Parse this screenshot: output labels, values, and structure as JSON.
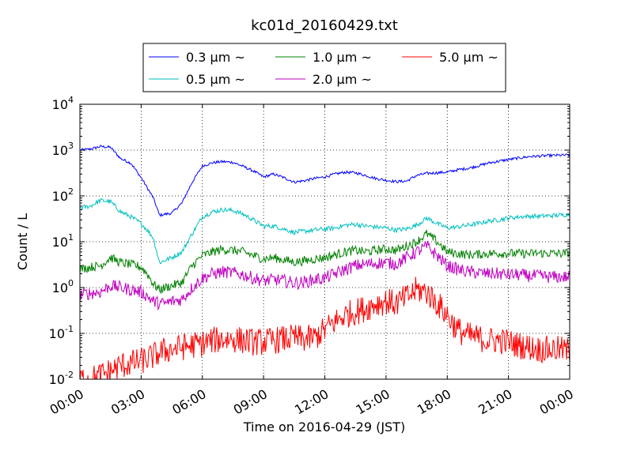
{
  "chart_data": {
    "type": "line",
    "title": "kc01d_20160429.txt",
    "xlabel": "Time on 2016-04-29 (JST)",
    "ylabel": "Count / L",
    "yscale": "log",
    "ylim": [
      0.01,
      10000
    ],
    "xlim": [
      0,
      24
    ],
    "grid": true,
    "legend_position": "top",
    "x_tick_labels": [
      "00:00",
      "03:00",
      "06:00",
      "09:00",
      "12:00",
      "15:00",
      "18:00",
      "21:00",
      "00:00"
    ],
    "x_tick_hours": [
      0,
      3,
      6,
      9,
      12,
      15,
      18,
      21,
      24
    ],
    "y_ticks": [
      {
        "value": 0.01,
        "base": "10",
        "exp": "-2"
      },
      {
        "value": 0.1,
        "base": "10",
        "exp": "-1"
      },
      {
        "value": 1,
        "base": "10",
        "exp": "0"
      },
      {
        "value": 10,
        "base": "10",
        "exp": "1"
      },
      {
        "value": 100,
        "base": "10",
        "exp": "2"
      },
      {
        "value": 1000,
        "base": "10",
        "exp": "3"
      },
      {
        "value": 10000,
        "base": "10",
        "exp": "4"
      }
    ],
    "legend_suffix": "~",
    "series": [
      {
        "name": "0.3 μm",
        "size": "0.3",
        "color": "#0000ff",
        "x": [
          0,
          0.5,
          1.0,
          1.5,
          2.0,
          2.5,
          3.0,
          3.3,
          3.6,
          3.9,
          4.2,
          4.5,
          5.0,
          5.5,
          6.0,
          6.5,
          7.0,
          7.5,
          8.0,
          8.5,
          9.0,
          9.5,
          10.0,
          10.5,
          11.0,
          11.5,
          12.0,
          12.5,
          13.0,
          13.5,
          14.0,
          14.5,
          15.0,
          15.5,
          16.0,
          16.5,
          17.0,
          17.5,
          18.0,
          18.5,
          19.0,
          19.5,
          20.0,
          20.5,
          21.0,
          21.5,
          22.0,
          22.5,
          23.0,
          23.5,
          24.0
        ],
        "values": [
          1000,
          1050,
          1200,
          1150,
          650,
          520,
          250,
          150,
          90,
          38,
          40,
          42,
          70,
          200,
          450,
          530,
          560,
          540,
          440,
          350,
          260,
          300,
          250,
          200,
          215,
          240,
          260,
          300,
          330,
          320,
          280,
          240,
          220,
          205,
          210,
          280,
          310,
          320,
          330,
          370,
          400,
          450,
          520,
          570,
          620,
          670,
          720,
          740,
          760,
          770,
          780
        ],
        "jitter": 0.03
      },
      {
        "name": "0.5 μm",
        "size": "0.5",
        "color": "#00bfbf",
        "x": [
          0,
          0.5,
          1.0,
          1.5,
          2.0,
          2.5,
          3.0,
          3.3,
          3.6,
          3.9,
          4.2,
          4.5,
          5.0,
          5.5,
          6.0,
          6.5,
          7.0,
          7.5,
          8.0,
          8.5,
          9.0,
          9.5,
          10.0,
          10.5,
          11.0,
          11.5,
          12.0,
          12.5,
          13.0,
          13.5,
          14.0,
          14.5,
          15.0,
          15.5,
          16.0,
          16.5,
          17.0,
          17.5,
          18.0,
          18.5,
          19.0,
          19.5,
          20.0,
          20.5,
          21.0,
          21.5,
          22.0,
          22.5,
          23.0,
          23.5,
          24.0
        ],
        "values": [
          55,
          60,
          80,
          75,
          45,
          35,
          25,
          18,
          12,
          3.5,
          4,
          4.5,
          6,
          15,
          35,
          45,
          50,
          48,
          40,
          30,
          22,
          22,
          19,
          16,
          17,
          18,
          19,
          20,
          23,
          24,
          22,
          21,
          20,
          18,
          19,
          23,
          33,
          25,
          20,
          21,
          23,
          25,
          28,
          30,
          33,
          35,
          36,
          36,
          37,
          38,
          40
        ],
        "jitter": 0.05
      },
      {
        "name": "1.0 μm",
        "size": "1.0",
        "color": "#008000",
        "x": [
          0,
          0.5,
          1.0,
          1.5,
          2.0,
          2.5,
          3.0,
          3.3,
          3.6,
          3.9,
          4.2,
          4.5,
          5.0,
          5.5,
          6.0,
          6.5,
          7.0,
          7.5,
          8.0,
          8.5,
          9.0,
          9.5,
          10.0,
          10.5,
          11.0,
          11.5,
          12.0,
          12.5,
          13.0,
          13.5,
          14.0,
          14.5,
          15.0,
          15.5,
          16.0,
          16.5,
          17.0,
          17.5,
          18.0,
          18.5,
          19.0,
          19.5,
          20.0,
          20.5,
          21.0,
          21.5,
          22.0,
          22.5,
          23.0,
          23.5,
          24.0
        ],
        "values": [
          2.5,
          2.8,
          3.0,
          4.5,
          3.5,
          3.2,
          2.8,
          2.0,
          1.2,
          0.9,
          1.0,
          1.1,
          1.3,
          3.0,
          5.0,
          6.0,
          6.8,
          6.5,
          6.0,
          5.0,
          4.2,
          4.5,
          4.0,
          3.6,
          3.8,
          4.2,
          4.5,
          5.2,
          6.0,
          6.5,
          6.0,
          6.5,
          7.0,
          6.5,
          8.0,
          10,
          15,
          10,
          6.0,
          5.5,
          5.2,
          5.3,
          5.5,
          5.6,
          5.6,
          5.5,
          5.5,
          5.6,
          5.6,
          5.5,
          5.7
        ],
        "jitter": 0.1
      },
      {
        "name": "2.0 μm",
        "size": "2.0",
        "color": "#bf00bf",
        "x": [
          0,
          0.5,
          1.0,
          1.5,
          2.0,
          2.5,
          3.0,
          3.3,
          3.6,
          3.9,
          4.2,
          4.5,
          5.0,
          5.5,
          6.0,
          6.5,
          7.0,
          7.5,
          8.0,
          8.5,
          9.0,
          9.5,
          10.0,
          10.5,
          11.0,
          11.5,
          12.0,
          12.5,
          13.0,
          13.5,
          14.0,
          14.5,
          15.0,
          15.5,
          16.0,
          16.5,
          17.0,
          17.5,
          18.0,
          18.5,
          19.0,
          19.5,
          20.0,
          20.5,
          21.0,
          21.5,
          22.0,
          22.5,
          23.0,
          23.5,
          24.0
        ],
        "values": [
          0.7,
          0.75,
          0.8,
          1.1,
          1.0,
          0.9,
          0.8,
          0.65,
          0.5,
          0.45,
          0.45,
          0.5,
          0.55,
          1.0,
          1.6,
          2.0,
          2.2,
          2.1,
          1.9,
          1.6,
          1.4,
          1.5,
          1.4,
          1.25,
          1.3,
          1.5,
          1.6,
          2.0,
          2.5,
          3.0,
          3.2,
          3.4,
          3.5,
          3.3,
          4.5,
          6.0,
          8.0,
          5.0,
          3.0,
          2.5,
          2.2,
          2.1,
          2.0,
          2.0,
          1.9,
          1.9,
          1.8,
          1.8,
          1.7,
          1.7,
          1.7
        ],
        "jitter": 0.14
      },
      {
        "name": "5.0 μm",
        "size": "5.0",
        "color": "#ff0000",
        "x": [
          0,
          0.5,
          1.0,
          1.5,
          2.0,
          2.5,
          3.0,
          3.5,
          4.0,
          4.5,
          5.0,
          5.5,
          6.0,
          6.5,
          7.0,
          7.5,
          8.0,
          8.5,
          9.0,
          9.5,
          10.0,
          10.5,
          11.0,
          11.5,
          12.0,
          12.5,
          13.0,
          13.5,
          14.0,
          14.5,
          15.0,
          15.5,
          16.0,
          16.5,
          17.0,
          17.5,
          18.0,
          18.5,
          19.0,
          19.5,
          20.0,
          20.5,
          21.0,
          21.5,
          22.0,
          22.5,
          23.0,
          23.5,
          24.0
        ],
        "values": [
          0.01,
          0.01,
          0.012,
          0.015,
          0.02,
          0.022,
          0.025,
          0.03,
          0.04,
          0.045,
          0.05,
          0.055,
          0.06,
          0.07,
          0.075,
          0.075,
          0.07,
          0.065,
          0.065,
          0.07,
          0.075,
          0.08,
          0.075,
          0.08,
          0.12,
          0.18,
          0.25,
          0.3,
          0.35,
          0.45,
          0.5,
          0.45,
          0.6,
          0.9,
          0.8,
          0.45,
          0.25,
          0.12,
          0.09,
          0.08,
          0.07,
          0.07,
          0.065,
          0.055,
          0.05,
          0.045,
          0.045,
          0.045,
          0.04
        ],
        "jitter": 0.3
      }
    ]
  }
}
